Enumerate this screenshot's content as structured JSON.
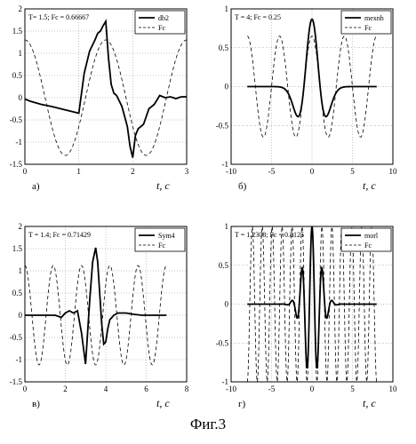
{
  "figure": {
    "caption": "Фиг.3"
  },
  "chart_data": [
    {
      "type": "line",
      "panel_label": "а)",
      "xunit_label": "t, c",
      "annotation": "T= 1.5; Fc = 0.66667",
      "xlim": [
        0,
        3
      ],
      "ylim": [
        -1.5,
        2
      ],
      "xticks": [
        "0",
        "1",
        "2",
        "3"
      ],
      "yticks": [
        "2",
        "1.5",
        "1",
        "0.5",
        "0",
        "-0.5",
        "-1",
        "-1.5"
      ],
      "legend_position": "top-right",
      "grid": true,
      "series": [
        {
          "name": "db2",
          "style": "solid",
          "x": [
            0,
            0.1,
            0.3,
            0.5,
            0.7,
            0.9,
            1.0,
            1.1,
            1.2,
            1.3,
            1.35,
            1.4,
            1.45,
            1.5,
            1.55,
            1.6,
            1.65,
            1.7,
            1.8,
            1.9,
            1.95,
            2.0,
            2.05,
            2.1,
            2.2,
            2.3,
            2.4,
            2.5,
            2.6,
            2.7,
            2.8,
            2.9,
            3.0
          ],
          "y": [
            -0.03,
            -0.08,
            -0.15,
            -0.2,
            -0.26,
            -0.32,
            -0.35,
            0.55,
            1.05,
            1.3,
            1.45,
            1.5,
            1.62,
            1.72,
            0.9,
            0.3,
            0.1,
            0.05,
            -0.2,
            -0.65,
            -1.1,
            -1.35,
            -0.85,
            -0.7,
            -0.6,
            -0.25,
            -0.15,
            0.05,
            0.0,
            0.02,
            -0.02,
            0.02,
            0.02
          ]
        },
        {
          "name": "Fc",
          "style": "dashed",
          "sine": {
            "amplitude": 1.3,
            "frequency": 0.66667,
            "phase_deg": 90,
            "x0": 0,
            "x1": 3
          }
        }
      ]
    },
    {
      "type": "line",
      "panel_label": "б)",
      "xunit_label": "t, c",
      "annotation": "T = 4; Fc = 0.25",
      "xlim": [
        -10,
        10
      ],
      "ylim": [
        -1,
        1
      ],
      "xticks": [
        "-10",
        "-5",
        "0",
        "5",
        "10"
      ],
      "yticks": [
        "1",
        "0.5",
        "0",
        "-0.5",
        "-1"
      ],
      "legend_position": "top-right",
      "grid": true,
      "series": [
        {
          "name": "mexnh",
          "style": "solid",
          "mexhat": {
            "amplitude": 0.867,
            "sigma": 1.0,
            "x0": -8,
            "x1": 8
          }
        },
        {
          "name": "Fc",
          "style": "dashed",
          "sine": {
            "amplitude": 0.65,
            "frequency": 0.25,
            "phase_deg": 90,
            "x0": -8,
            "x1": 8
          }
        }
      ]
    },
    {
      "type": "line",
      "panel_label": "в)",
      "xunit_label": "t, c",
      "annotation": "T = 1.4; Fc = 0.71429",
      "xlim": [
        0,
        8
      ],
      "ylim": [
        -1.5,
        2
      ],
      "xticks": [
        "0",
        "2",
        "4",
        "6",
        "8"
      ],
      "yticks": [
        "2",
        "1.5",
        "1",
        "0.5",
        "0",
        "-0.5",
        "-1",
        "-1.5"
      ],
      "legend_position": "top-right",
      "grid": true,
      "series": [
        {
          "name": "Sym4",
          "style": "solid",
          "x": [
            0,
            0.5,
            1.0,
            1.5,
            1.8,
            2.0,
            2.2,
            2.4,
            2.6,
            2.8,
            3.0,
            3.2,
            3.35,
            3.5,
            3.6,
            3.7,
            3.8,
            3.9,
            4.0,
            4.1,
            4.2,
            4.4,
            4.6,
            5.0,
            5.4,
            5.8,
            6.2,
            6.6,
            7.0
          ],
          "y": [
            0,
            0,
            0,
            0,
            -0.05,
            0.05,
            0.1,
            0.05,
            0.1,
            -0.4,
            -1.1,
            0.3,
            1.2,
            1.52,
            1.2,
            0.5,
            -0.2,
            -0.65,
            -0.6,
            -0.3,
            -0.1,
            0.0,
            0.05,
            0.05,
            0.02,
            0.0,
            0.0,
            0.0,
            0.0
          ]
        },
        {
          "name": "Fc",
          "style": "dashed",
          "sine": {
            "amplitude": 1.12,
            "frequency": 0.71429,
            "phase_deg": 90,
            "x0": 0,
            "x1": 7
          }
        }
      ]
    },
    {
      "type": "line",
      "panel_label": "г)",
      "xunit_label": "t, c",
      "annotation": "T = 1.2308; Fc = 0.8125",
      "xlim": [
        -10,
        10
      ],
      "ylim": [
        -1,
        1
      ],
      "xticks": [
        "-10",
        "-5",
        "0",
        "5",
        "10"
      ],
      "yticks": [
        "1",
        "0.5",
        "0",
        "-0.5",
        "-1"
      ],
      "legend_position": "top-right",
      "grid": true,
      "series": [
        {
          "name": "morl",
          "style": "solid",
          "morlet": {
            "amplitude": 1.0,
            "omega": 5.0,
            "x0": -8,
            "x1": 8
          }
        },
        {
          "name": "Fc",
          "style": "dashed",
          "sine": {
            "amplitude": 1.0,
            "frequency": 0.8125,
            "phase_deg": 90,
            "x0": -8,
            "x1": 8
          }
        }
      ]
    }
  ]
}
